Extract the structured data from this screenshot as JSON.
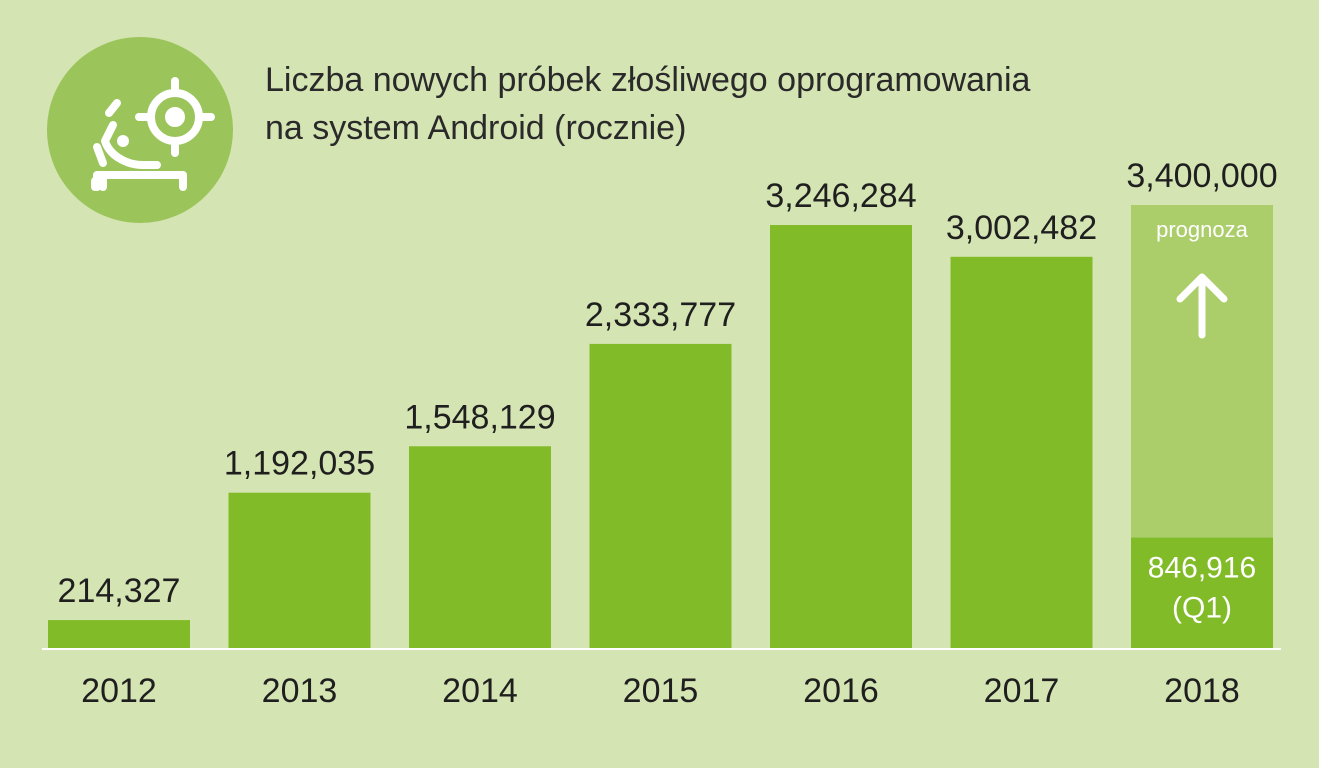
{
  "title_lines": [
    "Liczba nowych próbek złośliwego oprogramowania",
    "na system Android (rocznie)"
  ],
  "chart_data": {
    "type": "bar",
    "title": "Liczba nowych próbek złośliwego oprogramowania na system Android (rocznie)",
    "categories": [
      "2012",
      "2013",
      "2014",
      "2015",
      "2016",
      "2017",
      "2018"
    ],
    "values": [
      214327,
      1192035,
      1548129,
      2333777,
      3246284,
      3002482,
      846916
    ],
    "value_labels": [
      "214,327",
      "1,192,035",
      "1,548,129",
      "2,333,777",
      "3,246,284",
      "3,002,482",
      "846,916"
    ],
    "value_label_2018_suffix": "(Q1)",
    "forecast": {
      "category": "2018",
      "value": 3400000,
      "value_label": "3,400,000",
      "label": "prognoza"
    },
    "ylim": [
      0,
      3400000
    ],
    "grid": false,
    "legend": "none",
    "colors": {
      "bar": "#82bb28",
      "forecast": "#abcd6a",
      "background": "#d5e4b3",
      "axis": "#ffffff",
      "logo_circle": "#9bc55b"
    }
  },
  "icons": {
    "logo": "android-target-icon",
    "forecast_arrow": "arrow-up-icon"
  }
}
